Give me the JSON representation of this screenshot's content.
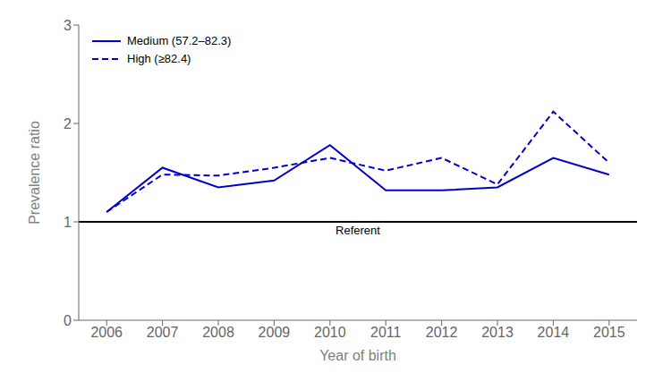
{
  "chart_data": {
    "type": "line",
    "x": [
      2006,
      2007,
      2008,
      2009,
      2010,
      2011,
      2012,
      2013,
      2014,
      2015
    ],
    "series": [
      {
        "name": "Medium (57.2–82.3)",
        "color": "#0000CC",
        "line_style": "solid",
        "values": [
          1.1,
          1.55,
          1.35,
          1.42,
          1.78,
          1.32,
          1.32,
          1.35,
          1.65,
          1.48
        ]
      },
      {
        "name": "High (≥82.4)",
        "color": "#0000CC",
        "line_style": "dashed",
        "values": [
          1.1,
          1.48,
          1.47,
          1.55,
          1.65,
          1.52,
          1.65,
          1.38,
          2.12,
          1.6
        ]
      }
    ],
    "xlabel": "Year of birth",
    "ylabel": "Prevalence ratio",
    "xlim": [
      2005.5,
      2015.5
    ],
    "xticks": [
      2006,
      2007,
      2008,
      2009,
      2010,
      2011,
      2012,
      2013,
      2014,
      2015
    ],
    "ylim": [
      0,
      3
    ],
    "yticks": [
      0,
      1,
      2,
      3
    ],
    "annotations": [
      {
        "text": "Referent",
        "y": 1.0
      }
    ],
    "grid": false,
    "legend": "upper left"
  }
}
